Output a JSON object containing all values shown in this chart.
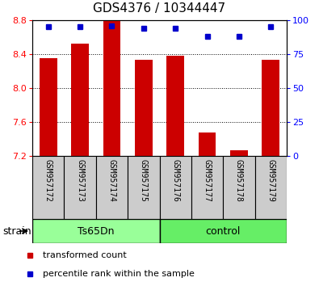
{
  "title": "GDS4376 / 10344447",
  "samples": [
    "GSM957172",
    "GSM957173",
    "GSM957174",
    "GSM957175",
    "GSM957176",
    "GSM957177",
    "GSM957178",
    "GSM957179"
  ],
  "transformed_counts": [
    8.35,
    8.52,
    8.8,
    8.33,
    8.38,
    7.48,
    7.27,
    8.33
  ],
  "percentile_ranks": [
    95,
    95,
    96,
    94,
    94,
    88,
    88,
    95
  ],
  "ylim_left": [
    7.2,
    8.8
  ],
  "yticks_left": [
    7.2,
    7.6,
    8.0,
    8.4,
    8.8
  ],
  "yticks_right": [
    0,
    25,
    50,
    75,
    100
  ],
  "bar_color": "#cc0000",
  "dot_color": "#0000cc",
  "bar_bottom": 7.2,
  "strain_label": "strain",
  "legend_items": [
    {
      "color": "#cc0000",
      "label": "transformed count"
    },
    {
      "color": "#0000cc",
      "label": "percentile rank within the sample"
    }
  ],
  "sample_box_color": "#cccccc",
  "group_ts65dn_color": "#99ff99",
  "group_control_color": "#66ee66",
  "plot_bg": "#ffffff",
  "title_fontsize": 11,
  "tick_fontsize": 8,
  "sample_fontsize": 7,
  "group_fontsize": 9,
  "legend_fontsize": 8
}
